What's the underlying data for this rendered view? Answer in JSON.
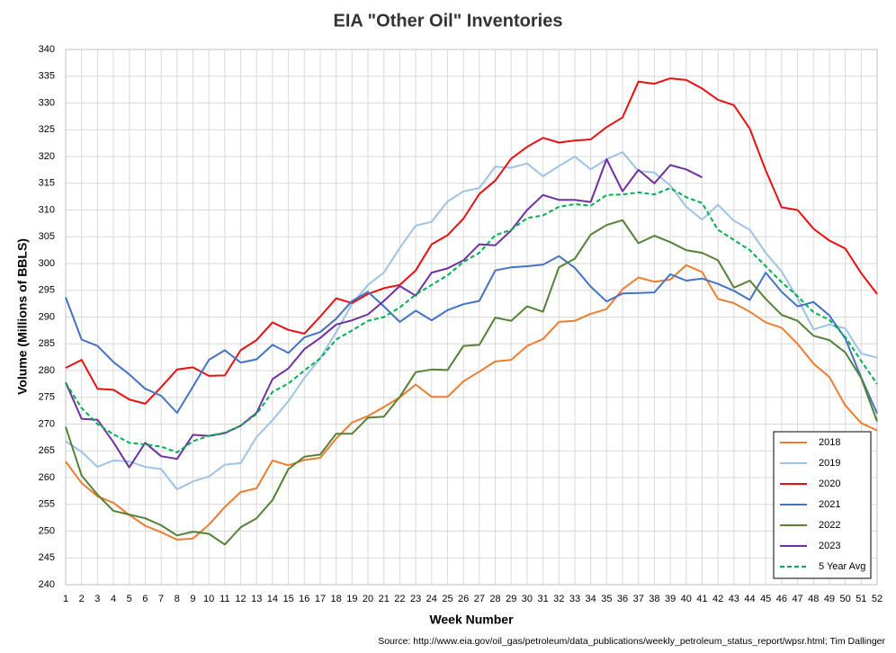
{
  "chart_data": {
    "type": "line",
    "title": "EIA \"Other Oil\" Inventories",
    "x_label": "Week Number",
    "y_label": "Volume (Millions of BBLS)",
    "source": "Source: http://www.eia.gov/oil_gas/petroleum/data_publications/weekly_petroleum_status_report/wpsr.html; Tim Dallinger",
    "x": [
      1,
      2,
      3,
      4,
      5,
      6,
      7,
      8,
      9,
      10,
      11,
      12,
      13,
      14,
      15,
      16,
      17,
      18,
      19,
      20,
      21,
      22,
      23,
      24,
      25,
      26,
      27,
      28,
      29,
      30,
      31,
      32,
      33,
      34,
      35,
      36,
      37,
      38,
      39,
      40,
      41,
      42,
      43,
      44,
      45,
      46,
      47,
      48,
      49,
      50,
      51,
      52
    ],
    "xlim": [
      1,
      52
    ],
    "xticks": [
      1,
      2,
      3,
      4,
      5,
      6,
      7,
      8,
      9,
      10,
      11,
      12,
      13,
      14,
      15,
      16,
      17,
      18,
      19,
      20,
      21,
      22,
      23,
      24,
      25,
      26,
      27,
      28,
      29,
      30,
      31,
      32,
      33,
      34,
      35,
      36,
      37,
      38,
      39,
      40,
      41,
      42,
      43,
      44,
      45,
      46,
      47,
      48,
      49,
      50,
      51,
      52
    ],
    "ylim": [
      240,
      340
    ],
    "yticks": [
      240,
      245,
      250,
      255,
      260,
      265,
      270,
      275,
      280,
      285,
      290,
      295,
      300,
      305,
      310,
      315,
      320,
      325,
      330,
      335,
      340
    ],
    "grid": true,
    "legend": "lower right",
    "series": [
      {
        "name": "2018",
        "color": "#ed7d31",
        "dash": false,
        "values": [
          263,
          259,
          256.5,
          255.3,
          253,
          251,
          249.8,
          248.4,
          248.6,
          251.2,
          254.5,
          257.3,
          258,
          263.2,
          262.3,
          263.3,
          263.7,
          267.3,
          270.3,
          271.5,
          273.2,
          275,
          277.4,
          275.1,
          275.1,
          278,
          279.8,
          281.7,
          282,
          284.6,
          285.9,
          289.1,
          289.3,
          290.6,
          291.5,
          295.2,
          297.4,
          296.6,
          297,
          299.7,
          298.4,
          293.4,
          292.6,
          291,
          289,
          288,
          285,
          281.3,
          278.8,
          273.5,
          270.2,
          268.8
        ]
      },
      {
        "name": "2019",
        "color": "#9dc3e6",
        "dash": false,
        "values": [
          266.8,
          264.8,
          262,
          263.2,
          263,
          262,
          261.6,
          257.8,
          259.3,
          260.2,
          262.4,
          262.7,
          267.6,
          270.7,
          274.3,
          278.6,
          282.3,
          287.2,
          292.5,
          296,
          298.3,
          302.9,
          307.1,
          307.8,
          311.6,
          313.5,
          314.1,
          318.1,
          317.9,
          318.7,
          316.3,
          318.2,
          320,
          317.6,
          319.5,
          320.8,
          317.3,
          317,
          314.6,
          310.6,
          308.2,
          311,
          308,
          306.3,
          302,
          298.5,
          293.5,
          287.7,
          288.6,
          287.9,
          283.2,
          282.4
        ]
      },
      {
        "name": "2020",
        "color": "#e81010",
        "dash": false,
        "values": [
          280.5,
          282,
          276.6,
          276.4,
          274.6,
          273.8,
          276.9,
          280.2,
          280.6,
          279,
          279.1,
          283.8,
          285.7,
          289,
          287.6,
          286.9,
          290.1,
          293.5,
          292.6,
          294.3,
          295.4,
          296,
          298.7,
          303.6,
          305.3,
          308.4,
          313,
          315.5,
          319.6,
          321.8,
          323.5,
          322.6,
          323,
          323.2,
          325.5,
          327.3,
          334,
          333.6,
          334.6,
          334.3,
          332.7,
          330.6,
          329.6,
          325.2,
          317.4,
          310.5,
          310,
          306.5,
          304.3,
          302.8,
          298.2,
          294.3
        ]
      },
      {
        "name": "2021",
        "color": "#4472c4",
        "dash": false,
        "values": [
          293.7,
          285.8,
          284.6,
          281.6,
          279.3,
          276.6,
          275.3,
          272.1,
          277,
          282,
          283.8,
          281.5,
          282.1,
          284.8,
          283.3,
          286.2,
          287.2,
          289.7,
          293,
          294.7,
          292,
          289.1,
          291.2,
          289.4,
          291.3,
          292.4,
          293,
          298.7,
          299.3,
          299.5,
          299.8,
          301.4,
          299.2,
          295.7,
          292.9,
          294.4,
          294.5,
          294.6,
          298,
          296.8,
          297.2,
          296.2,
          294.9,
          293.2,
          298.3,
          294.7,
          292,
          292.8,
          290.3,
          286,
          278.7,
          272
        ]
      },
      {
        "name": "2022",
        "color": "#548235",
        "dash": false,
        "values": [
          269.5,
          260.4,
          256.8,
          253.8,
          253.1,
          252.4,
          251.1,
          249.2,
          249.9,
          249.5,
          247.5,
          250.7,
          252.4,
          255.8,
          261.6,
          263.9,
          264.3,
          268.2,
          268.2,
          271.2,
          271.4,
          275.1,
          279.7,
          280.2,
          280.1,
          284.6,
          284.8,
          289.9,
          289.3,
          292,
          291,
          299.3,
          300.9,
          305.4,
          307.2,
          308.1,
          303.8,
          305.2,
          304,
          302.5,
          302,
          300.6,
          295.5,
          296.8,
          293.4,
          290.4,
          289.3,
          286.5,
          285.7,
          283.4,
          278.6,
          270.5
        ]
      },
      {
        "name": "2023",
        "color": "#7030a0",
        "dash": false,
        "values": [
          277.8,
          271,
          270.8,
          266.6,
          261.9,
          266.5,
          264,
          263.5,
          268,
          267.8,
          268.3,
          269.7,
          272.1,
          278.4,
          280.4,
          284,
          286.1,
          288.6,
          289.4,
          290.5,
          293,
          295.8,
          294,
          298.3,
          299.1,
          300.6,
          303.6,
          303.4,
          306.2,
          310,
          312.8,
          311.9,
          311.9,
          311.5,
          319.5,
          313.5,
          317.5,
          315,
          318.4,
          317.6,
          316.1,
          null,
          null,
          null,
          null,
          null,
          null,
          null,
          null,
          null,
          null,
          null
        ]
      },
      {
        "name": "5 Year Avg",
        "color": "#00b050",
        "dash": true,
        "values": [
          277.7,
          273,
          270,
          268.1,
          266.5,
          266.2,
          265.8,
          264.7,
          266.8,
          267.8,
          268.4,
          269.7,
          271.9,
          276,
          277.6,
          280,
          282.3,
          285.8,
          287.5,
          289.3,
          290,
          291.8,
          294.2,
          296,
          297.8,
          300.3,
          302,
          305.3,
          306.3,
          308.5,
          309,
          310.6,
          311.1,
          310.8,
          312.8,
          312.9,
          313.3,
          312.9,
          314.1,
          312.4,
          311.3,
          306.3,
          304.4,
          302.5,
          299.5,
          296.5,
          293.9,
          290.9,
          289.5,
          286.3,
          281.8,
          277.5
        ]
      }
    ]
  }
}
